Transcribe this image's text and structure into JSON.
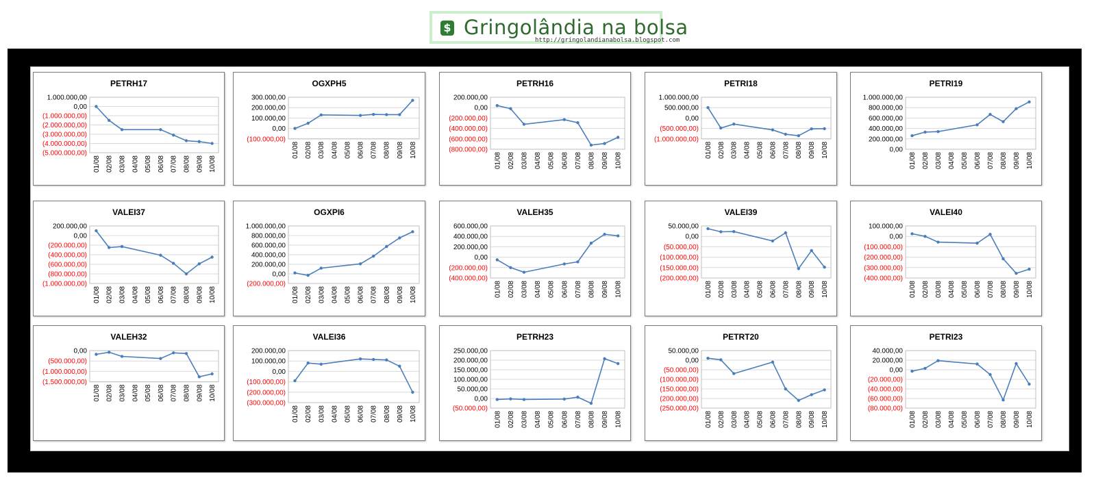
{
  "header": {
    "logo_text": "Gringolândia na bolsa",
    "logo_url": "http://gringolandianabolsa.blogspot.com",
    "logo_badge": "$"
  },
  "colors": {
    "line": "#4a7ebb",
    "negative": "#ff0000",
    "grid": "#d9d9d9",
    "frame": "#000000"
  },
  "chart_data": [
    {
      "type": "line",
      "title": "PETRH17",
      "categories": [
        "01/08",
        "02/08",
        "03/08",
        "04/08",
        "05/08",
        "06/08",
        "07/08",
        "08/08",
        "09/08",
        "10/08"
      ],
      "series": [
        {
          "values": [
            0,
            -1500000,
            -2500000,
            null,
            null,
            -2500000,
            -3100000,
            -3700000,
            -3800000,
            -4000000
          ]
        }
      ],
      "ylim": [
        -5000000,
        1000000
      ],
      "yticks": [
        "1.000.000,00",
        "0,00",
        "(1.000.000,00)",
        "(2.000.000,00)",
        "(3.000.000,00)",
        "(4.000.000,00)",
        "(5.000.000,00)"
      ]
    },
    {
      "type": "line",
      "title": "OGXPH5",
      "categories": [
        "01/08",
        "02/08",
        "03/08",
        "04/08",
        "05/08",
        "06/08",
        "07/08",
        "08/08",
        "09/08",
        "10/08"
      ],
      "series": [
        {
          "values": [
            0,
            50000,
            130000,
            null,
            null,
            125000,
            135000,
            133000,
            133000,
            270000
          ]
        }
      ],
      "ylim": [
        -100000,
        300000
      ],
      "yticks": [
        "300.000,00",
        "200.000,00",
        "100.000,00",
        "0,00",
        "(100.000,00)"
      ]
    },
    {
      "type": "line",
      "title": "PETRH16",
      "categories": [
        "01/08",
        "02/08",
        "03/08",
        "04/08",
        "05/08",
        "06/08",
        "07/08",
        "08/08",
        "09/08",
        "10/08"
      ],
      "series": [
        {
          "values": [
            40000,
            -20000,
            -320000,
            null,
            null,
            -230000,
            -290000,
            -720000,
            -690000,
            -570000
          ]
        }
      ],
      "ylim": [
        -800000,
        200000
      ],
      "yticks": [
        "200.000,00",
        "0,00",
        "(200.000,00)",
        "(400.000,00)",
        "(600.000,00)",
        "(800.000,00)"
      ]
    },
    {
      "type": "line",
      "title": "PETRI18",
      "categories": [
        "01/08",
        "02/08",
        "03/08",
        "04/08",
        "05/08",
        "06/08",
        "07/08",
        "08/08",
        "09/08",
        "10/08"
      ],
      "series": [
        {
          "values": [
            500000,
            -480000,
            -290000,
            null,
            null,
            -570000,
            -780000,
            -850000,
            -520000,
            -510000
          ]
        }
      ],
      "ylim": [
        -1000000,
        1000000
      ],
      "yticks": [
        "1.000.000,00",
        "500.000,00",
        "0,00",
        "(500.000,00)",
        "(1.000.000,00)"
      ]
    },
    {
      "type": "line",
      "title": "PETRI19",
      "categories": [
        "01/08",
        "02/08",
        "03/08",
        "04/08",
        "05/08",
        "06/08",
        "07/08",
        "08/08",
        "09/08",
        "10/08"
      ],
      "series": [
        {
          "values": [
            260000,
            330000,
            340000,
            null,
            null,
            470000,
            670000,
            530000,
            780000,
            910000
          ]
        }
      ],
      "ylim": [
        0,
        1000000
      ],
      "yticks": [
        "1.000.000,00",
        "800.000,00",
        "600.000,00",
        "400.000,00",
        "200.000,00",
        "0,00"
      ]
    },
    {
      "type": "line",
      "title": "VALEI37",
      "categories": [
        "01/08",
        "02/08",
        "03/08",
        "04/08",
        "05/08",
        "06/08",
        "07/08",
        "08/08",
        "09/08",
        "10/08"
      ],
      "series": [
        {
          "values": [
            100000,
            -250000,
            -230000,
            null,
            null,
            -410000,
            -580000,
            -800000,
            -590000,
            -450000
          ]
        }
      ],
      "ylim": [
        -1000000,
        200000
      ],
      "yticks": [
        "200.000,00",
        "0,00",
        "(200.000,00)",
        "(400.000,00)",
        "(600.000,00)",
        "(800.000,00)",
        "(1.000.000,00)"
      ]
    },
    {
      "type": "line",
      "title": "OGXPI6",
      "categories": [
        "01/08",
        "02/08",
        "03/08",
        "04/08",
        "05/08",
        "06/08",
        "07/08",
        "08/08",
        "09/08",
        "10/08"
      ],
      "series": [
        {
          "values": [
            20000,
            -30000,
            120000,
            null,
            null,
            210000,
            370000,
            570000,
            750000,
            880000
          ]
        }
      ],
      "ylim": [
        -200000,
        1000000
      ],
      "yticks": [
        "1.000.000,00",
        "800.000,00",
        "600.000,00",
        "400.000,00",
        "200.000,00",
        "0,00",
        "(200.000,00)"
      ]
    },
    {
      "type": "line",
      "title": "VALEH35",
      "categories": [
        "01/08",
        "02/08",
        "03/08",
        "04/08",
        "05/08",
        "06/08",
        "07/08",
        "08/08",
        "09/08",
        "10/08"
      ],
      "series": [
        {
          "values": [
            -50000,
            -200000,
            -290000,
            null,
            null,
            -130000,
            -90000,
            270000,
            440000,
            410000
          ]
        }
      ],
      "ylim": [
        -400000,
        600000
      ],
      "yticks": [
        "600.000,00",
        "400.000,00",
        "200.000,00",
        "0,00",
        "(200.000,00)",
        "(400.000,00)"
      ]
    },
    {
      "type": "line",
      "title": "VALEI39",
      "categories": [
        "01/08",
        "02/08",
        "03/08",
        "04/08",
        "05/08",
        "06/08",
        "07/08",
        "08/08",
        "09/08",
        "10/08"
      ],
      "series": [
        {
          "values": [
            37000,
            22000,
            23000,
            null,
            null,
            -22000,
            17000,
            -155000,
            -68000,
            -148000
          ]
        }
      ],
      "ylim": [
        -200000,
        50000
      ],
      "yticks": [
        "50.000,00",
        "0,00",
        "(50.000,00)",
        "(100.000,00)",
        "(150.000,00)",
        "(200.000,00)"
      ]
    },
    {
      "type": "line",
      "title": "VALEI40",
      "categories": [
        "01/08",
        "02/08",
        "03/08",
        "04/08",
        "05/08",
        "06/08",
        "07/08",
        "08/08",
        "09/08",
        "10/08"
      ],
      "series": [
        {
          "values": [
            25000,
            0,
            -55000,
            null,
            null,
            -65000,
            20000,
            -215000,
            -355000,
            -315000
          ]
        }
      ],
      "ylim": [
        -400000,
        100000
      ],
      "yticks": [
        "100.000,00",
        "0,00",
        "(100.000,00)",
        "(200.000,00)",
        "(300.000,00)",
        "(400.000,00)"
      ]
    },
    {
      "type": "line",
      "title": "VALEH32",
      "categories": [
        "01/08",
        "02/08",
        "03/08",
        "04/08",
        "05/08",
        "06/08",
        "07/08",
        "08/08",
        "09/08",
        "10/08"
      ],
      "series": [
        {
          "values": [
            -180000,
            -80000,
            -280000,
            null,
            null,
            -380000,
            -110000,
            -140000,
            -1260000,
            -1120000
          ]
        }
      ],
      "ylim": [
        -1500000,
        0
      ],
      "yticks": [
        "0,00",
        "(500.000,00)",
        "(1.000.000,00)",
        "(1.500.000,00)"
      ]
    },
    {
      "type": "line",
      "title": "VALEI36",
      "categories": [
        "01/08",
        "02/08",
        "03/08",
        "04/08",
        "05/08",
        "06/08",
        "07/08",
        "08/08",
        "09/08",
        "10/08"
      ],
      "series": [
        {
          "values": [
            -90000,
            80000,
            70000,
            null,
            null,
            120000,
            115000,
            110000,
            50000,
            -200000
          ]
        }
      ],
      "ylim": [
        -300000,
        200000
      ],
      "yticks": [
        "200.000,00",
        "100.000,00",
        "0,00",
        "(100.000,00)",
        "(200.000,00)",
        "(300.000,00)"
      ]
    },
    {
      "type": "line",
      "title": "PETRH23",
      "categories": [
        "01/08",
        "02/08",
        "03/08",
        "04/08",
        "05/08",
        "06/08",
        "07/08",
        "08/08",
        "09/08",
        "10/08"
      ],
      "series": [
        {
          "values": [
            -5000,
            -2000,
            -5000,
            null,
            null,
            -3000,
            7000,
            -25000,
            208000,
            182000
          ]
        }
      ],
      "ylim": [
        -50000,
        250000
      ],
      "yticks": [
        "250.000,00",
        "200.000,00",
        "150.000,00",
        "100.000,00",
        "50.000,00",
        "0,00",
        "(50.000,00)"
      ]
    },
    {
      "type": "line",
      "title": "PETRT20",
      "categories": [
        "01/08",
        "02/08",
        "03/08",
        "04/08",
        "05/08",
        "06/08",
        "07/08",
        "08/08",
        "09/08",
        "10/08"
      ],
      "series": [
        {
          "values": [
            10000,
            2000,
            -70000,
            null,
            null,
            -10000,
            -150000,
            -210000,
            -180000,
            -155000
          ]
        }
      ],
      "ylim": [
        -250000,
        50000
      ],
      "yticks": [
        "50.000,00",
        "0,00",
        "(50.000,00)",
        "(100.000,00)",
        "(150.000,00)",
        "(200.000,00)",
        "(250.000,00)"
      ]
    },
    {
      "type": "line",
      "title": "PETRI23",
      "categories": [
        "01/08",
        "02/08",
        "03/08",
        "04/08",
        "05/08",
        "06/08",
        "07/08",
        "08/08",
        "09/08",
        "10/08"
      ],
      "series": [
        {
          "values": [
            -3000,
            3000,
            19000,
            null,
            null,
            12000,
            -10000,
            -63000,
            13000,
            -30000
          ]
        }
      ],
      "ylim": [
        -80000,
        40000
      ],
      "yticks": [
        "40.000,00",
        "20.000,00",
        "0,00",
        "(20.000,00)",
        "(40.000,00)",
        "(60.000,00)",
        "(80.000,00)"
      ]
    }
  ]
}
